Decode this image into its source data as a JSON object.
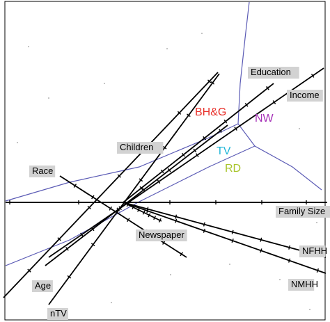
{
  "chart_data": {
    "type": "scatter",
    "title": "",
    "xlabel": "",
    "ylabel": "",
    "grid": false,
    "origin_label": "",
    "variables": [
      {
        "name": "Education",
        "label_pos": "end",
        "end": [
          3.1,
          3.1
        ]
      },
      {
        "name": "Income",
        "label_pos": "end",
        "end": [
          4.2,
          2.7
        ]
      },
      {
        "name": "Children",
        "label_pos": "along",
        "end": [
          1.9,
          1.3
        ]
      },
      {
        "name": "Race",
        "label_pos": "end",
        "end": [
          -1.2,
          0.55
        ]
      },
      {
        "name": "Family Size",
        "label_pos": "end",
        "end": [
          4.3,
          0.0
        ]
      },
      {
        "name": "Newspaper",
        "label_pos": "end",
        "end": [
          0.6,
          -0.45
        ]
      },
      {
        "name": "NFHH",
        "label_pos": "end",
        "end": [
          4.3,
          -1.3
        ]
      },
      {
        "name": "NMHH",
        "label_pos": "end",
        "end": [
          4.3,
          -1.55
        ]
      },
      {
        "name": "Age",
        "label_pos": "end",
        "end": [
          -2.3,
          -2.1
        ]
      },
      {
        "name": "nTV",
        "label_pos": "end",
        "end": [
          -1.3,
          -2.3
        ]
      }
    ],
    "groups": [
      {
        "name": "BH&G",
        "color": "#e8302a"
      },
      {
        "name": "NW",
        "color": "#a632b8"
      },
      {
        "name": "TV",
        "color": "#1fb5d8"
      },
      {
        "name": "RD",
        "color": "#a8c42a"
      }
    ],
    "axis_color": "#000000",
    "region_color": "#5b5bb5",
    "label_box_color": "#d2d2d2"
  }
}
